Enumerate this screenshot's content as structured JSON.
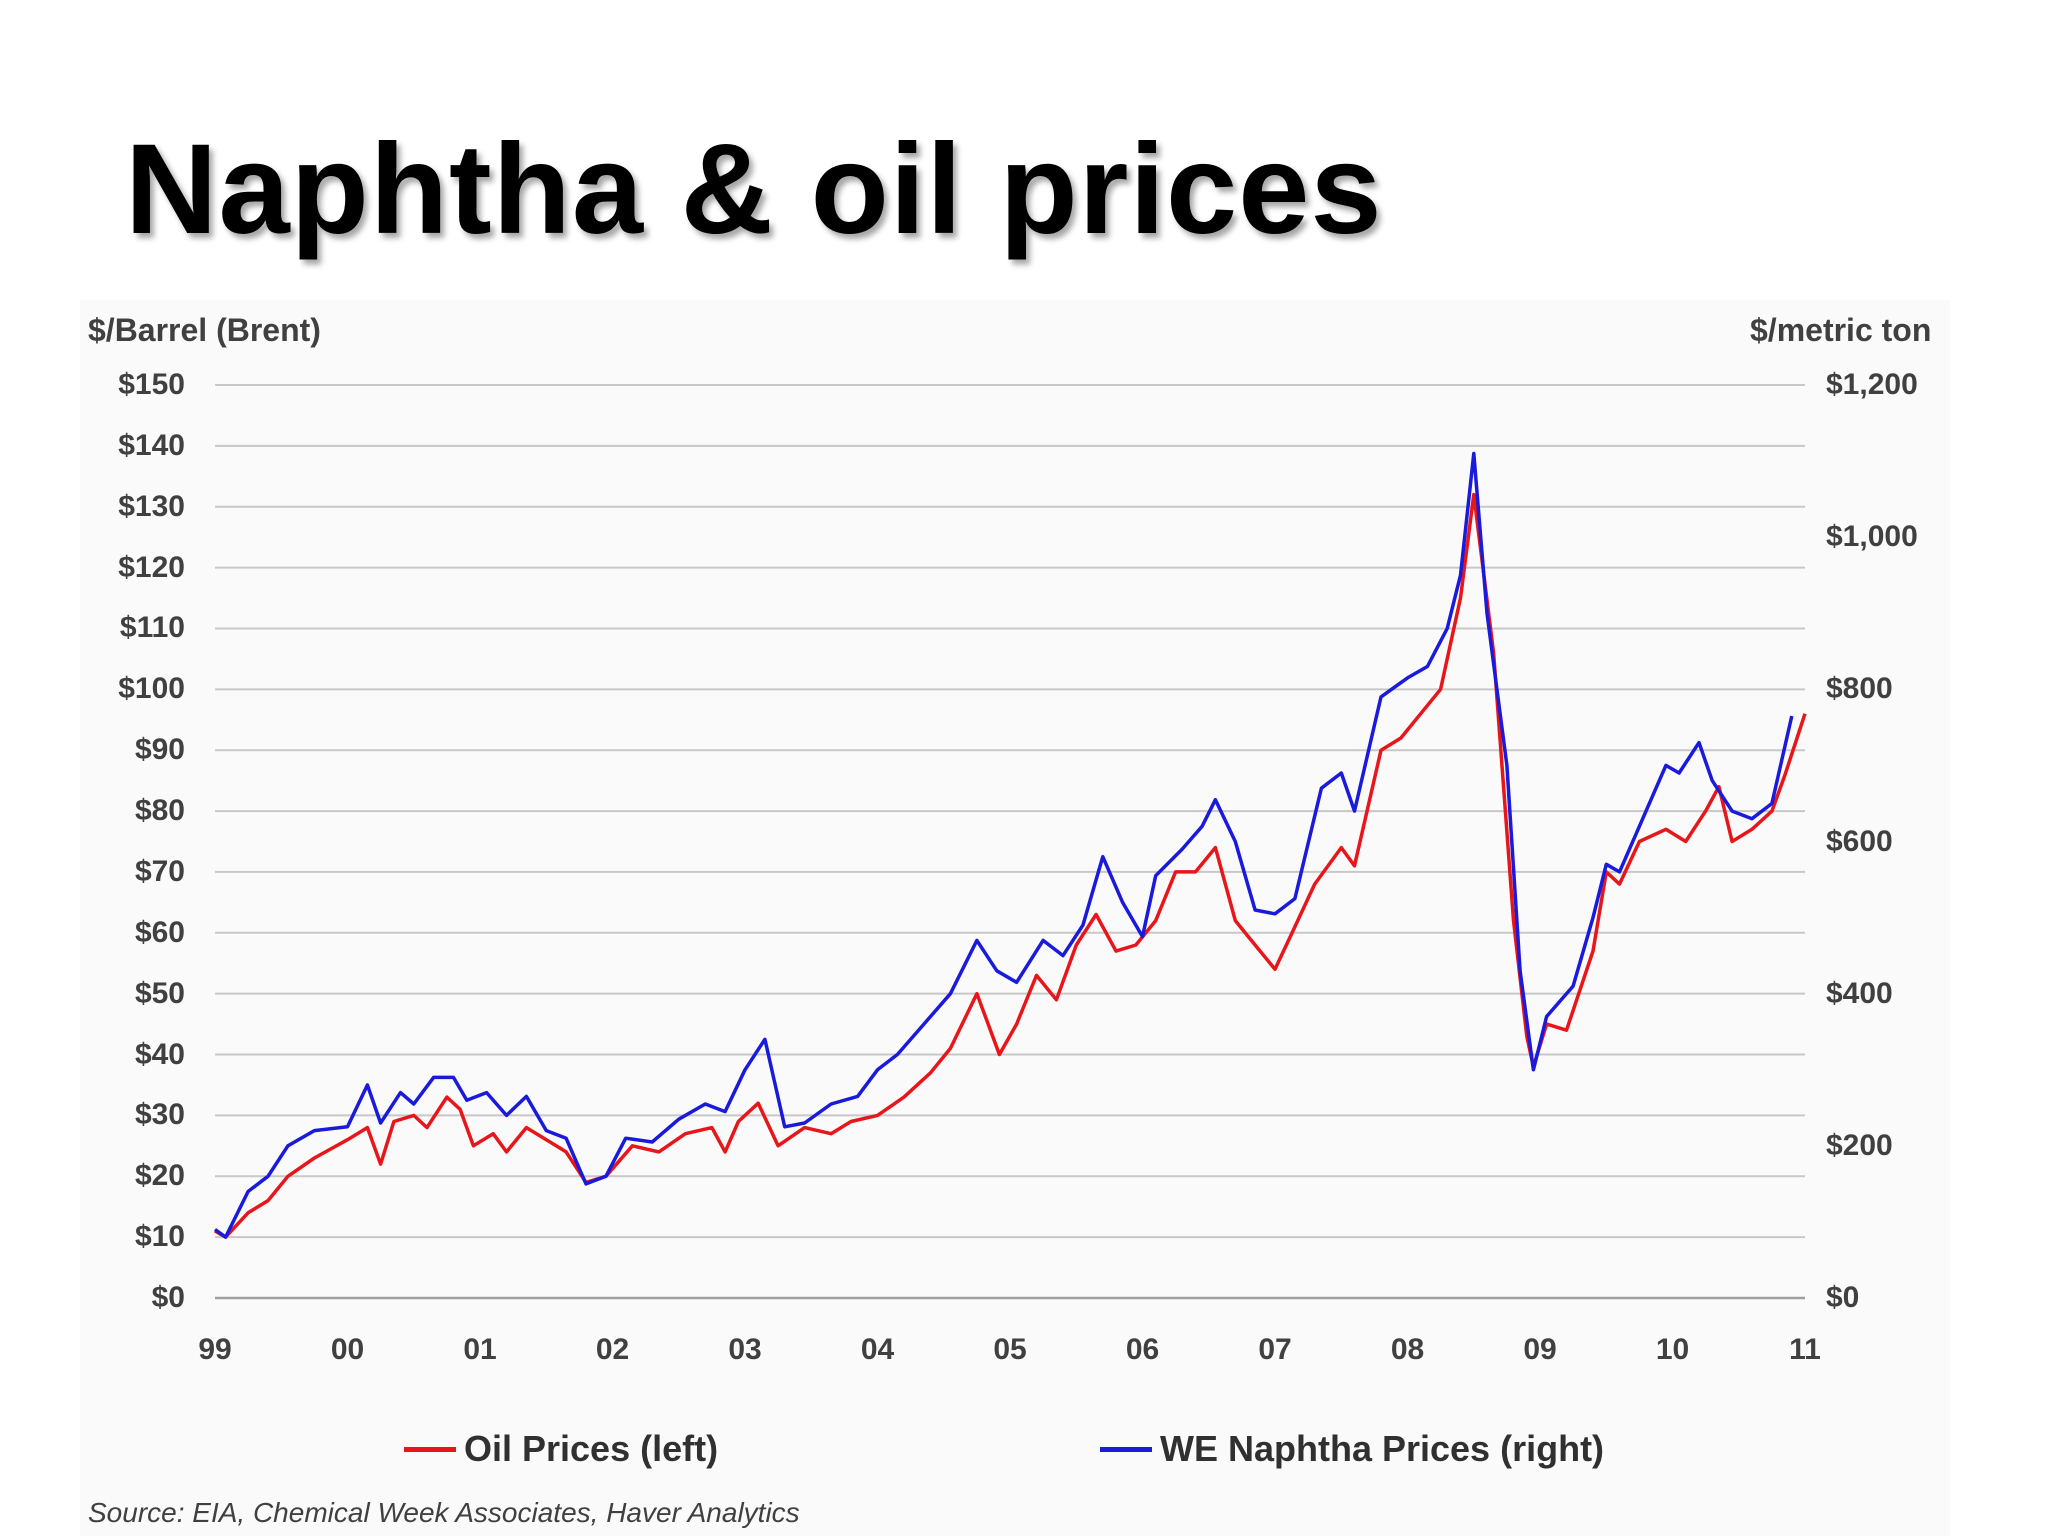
{
  "slide": {
    "title": "Naphtha & oil prices"
  },
  "chart_data": {
    "type": "line",
    "left_axis_title": "$/Barrel (Brent)",
    "right_axis_title": "$/metric ton",
    "left_ticks": [
      "$0",
      "$10",
      "$20",
      "$30",
      "$40",
      "$50",
      "$60",
      "$70",
      "$80",
      "$90",
      "$100",
      "$110",
      "$120",
      "$130",
      "$140",
      "$150"
    ],
    "right_ticks": [
      "$0",
      "$200",
      "$400",
      "$600",
      "$800",
      "$1,000",
      "$1,200"
    ],
    "x_ticks": [
      "99",
      "00",
      "01",
      "02",
      "03",
      "04",
      "05",
      "06",
      "07",
      "08",
      "09",
      "10",
      "11"
    ],
    "ylim_left": [
      0,
      150
    ],
    "ylim_right": [
      0,
      1200
    ],
    "xlim": [
      1999,
      2011
    ],
    "grid": "horizontal",
    "legend_position": "bottom",
    "colors": {
      "oil": "#e8161b",
      "naphtha": "#1a1adc"
    },
    "series": [
      {
        "name": "Oil Prices (left)",
        "axis": "left",
        "points": [
          [
            1999.0,
            11
          ],
          [
            1999.08,
            10
          ],
          [
            1999.25,
            14
          ],
          [
            1999.4,
            16
          ],
          [
            1999.55,
            20
          ],
          [
            1999.75,
            23
          ],
          [
            2000.0,
            26
          ],
          [
            2000.15,
            28
          ],
          [
            2000.25,
            22
          ],
          [
            2000.35,
            29
          ],
          [
            2000.5,
            30
          ],
          [
            2000.6,
            28
          ],
          [
            2000.75,
            33
          ],
          [
            2000.85,
            31
          ],
          [
            2000.95,
            25
          ],
          [
            2001.1,
            27
          ],
          [
            2001.2,
            24
          ],
          [
            2001.35,
            28
          ],
          [
            2001.5,
            26
          ],
          [
            2001.65,
            24
          ],
          [
            2001.8,
            19
          ],
          [
            2001.95,
            20
          ],
          [
            2002.15,
            25
          ],
          [
            2002.35,
            24
          ],
          [
            2002.55,
            27
          ],
          [
            2002.75,
            28
          ],
          [
            2002.85,
            24
          ],
          [
            2002.95,
            29
          ],
          [
            2003.1,
            32
          ],
          [
            2003.25,
            25
          ],
          [
            2003.45,
            28
          ],
          [
            2003.65,
            27
          ],
          [
            2003.8,
            29
          ],
          [
            2004.0,
            30
          ],
          [
            2004.2,
            33
          ],
          [
            2004.4,
            37
          ],
          [
            2004.55,
            41
          ],
          [
            2004.75,
            50
          ],
          [
            2004.92,
            40
          ],
          [
            2005.05,
            45
          ],
          [
            2005.2,
            53
          ],
          [
            2005.35,
            49
          ],
          [
            2005.5,
            58
          ],
          [
            2005.65,
            63
          ],
          [
            2005.8,
            57
          ],
          [
            2005.95,
            58
          ],
          [
            2006.1,
            62
          ],
          [
            2006.25,
            70
          ],
          [
            2006.4,
            70
          ],
          [
            2006.55,
            74
          ],
          [
            2006.7,
            62
          ],
          [
            2006.85,
            58
          ],
          [
            2007.0,
            54
          ],
          [
            2007.15,
            61
          ],
          [
            2007.3,
            68
          ],
          [
            2007.5,
            74
          ],
          [
            2007.6,
            71
          ],
          [
            2007.8,
            90
          ],
          [
            2007.95,
            92
          ],
          [
            2008.1,
            96
          ],
          [
            2008.25,
            100
          ],
          [
            2008.4,
            115
          ],
          [
            2008.5,
            132
          ],
          [
            2008.65,
            106
          ],
          [
            2008.8,
            62
          ],
          [
            2008.9,
            43
          ],
          [
            2008.95,
            38
          ],
          [
            2009.05,
            45
          ],
          [
            2009.2,
            44
          ],
          [
            2009.4,
            57
          ],
          [
            2009.5,
            70
          ],
          [
            2009.6,
            68
          ],
          [
            2009.75,
            75
          ],
          [
            2009.95,
            77
          ],
          [
            2010.1,
            75
          ],
          [
            2010.25,
            80
          ],
          [
            2010.35,
            84
          ],
          [
            2010.45,
            75
          ],
          [
            2010.6,
            77
          ],
          [
            2010.75,
            80
          ],
          [
            2010.85,
            86
          ],
          [
            2011.0,
            96
          ]
        ]
      },
      {
        "name": "WE Naphtha Prices (right)",
        "axis": "right",
        "points": [
          [
            1999.0,
            90
          ],
          [
            1999.08,
            80
          ],
          [
            1999.25,
            140
          ],
          [
            1999.4,
            160
          ],
          [
            1999.55,
            200
          ],
          [
            1999.75,
            220
          ],
          [
            2000.0,
            225
          ],
          [
            2000.15,
            280
          ],
          [
            2000.25,
            230
          ],
          [
            2000.4,
            270
          ],
          [
            2000.5,
            255
          ],
          [
            2000.65,
            290
          ],
          [
            2000.8,
            290
          ],
          [
            2000.9,
            260
          ],
          [
            2001.05,
            270
          ],
          [
            2001.2,
            240
          ],
          [
            2001.35,
            265
          ],
          [
            2001.5,
            220
          ],
          [
            2001.65,
            210
          ],
          [
            2001.8,
            150
          ],
          [
            2001.95,
            160
          ],
          [
            2002.1,
            210
          ],
          [
            2002.3,
            205
          ],
          [
            2002.5,
            235
          ],
          [
            2002.7,
            255
          ],
          [
            2002.85,
            245
          ],
          [
            2003.0,
            300
          ],
          [
            2003.15,
            340
          ],
          [
            2003.3,
            225
          ],
          [
            2003.45,
            230
          ],
          [
            2003.65,
            255
          ],
          [
            2003.85,
            265
          ],
          [
            2004.0,
            300
          ],
          [
            2004.15,
            320
          ],
          [
            2004.35,
            360
          ],
          [
            2004.55,
            400
          ],
          [
            2004.75,
            470
          ],
          [
            2004.9,
            430
          ],
          [
            2005.05,
            415
          ],
          [
            2005.25,
            470
          ],
          [
            2005.4,
            450
          ],
          [
            2005.55,
            490
          ],
          [
            2005.7,
            580
          ],
          [
            2005.85,
            520
          ],
          [
            2006.0,
            475
          ],
          [
            2006.1,
            555
          ],
          [
            2006.3,
            590
          ],
          [
            2006.45,
            620
          ],
          [
            2006.55,
            655
          ],
          [
            2006.7,
            600
          ],
          [
            2006.85,
            510
          ],
          [
            2007.0,
            505
          ],
          [
            2007.15,
            525
          ],
          [
            2007.35,
            670
          ],
          [
            2007.5,
            690
          ],
          [
            2007.6,
            640
          ],
          [
            2007.8,
            790
          ],
          [
            2008.0,
            815
          ],
          [
            2008.15,
            830
          ],
          [
            2008.3,
            880
          ],
          [
            2008.4,
            950
          ],
          [
            2008.5,
            1110
          ],
          [
            2008.6,
            900
          ],
          [
            2008.75,
            700
          ],
          [
            2008.85,
            430
          ],
          [
            2008.95,
            300
          ],
          [
            2009.05,
            370
          ],
          [
            2009.25,
            410
          ],
          [
            2009.4,
            500
          ],
          [
            2009.5,
            570
          ],
          [
            2009.6,
            560
          ],
          [
            2009.75,
            620
          ],
          [
            2009.95,
            700
          ],
          [
            2010.05,
            690
          ],
          [
            2010.2,
            730
          ],
          [
            2010.3,
            680
          ],
          [
            2010.45,
            640
          ],
          [
            2010.6,
            630
          ],
          [
            2010.75,
            650
          ],
          [
            2010.9,
            765
          ]
        ]
      }
    ]
  },
  "source_text": "Source: EIA, Chemical Week Associates, Haver Analytics"
}
